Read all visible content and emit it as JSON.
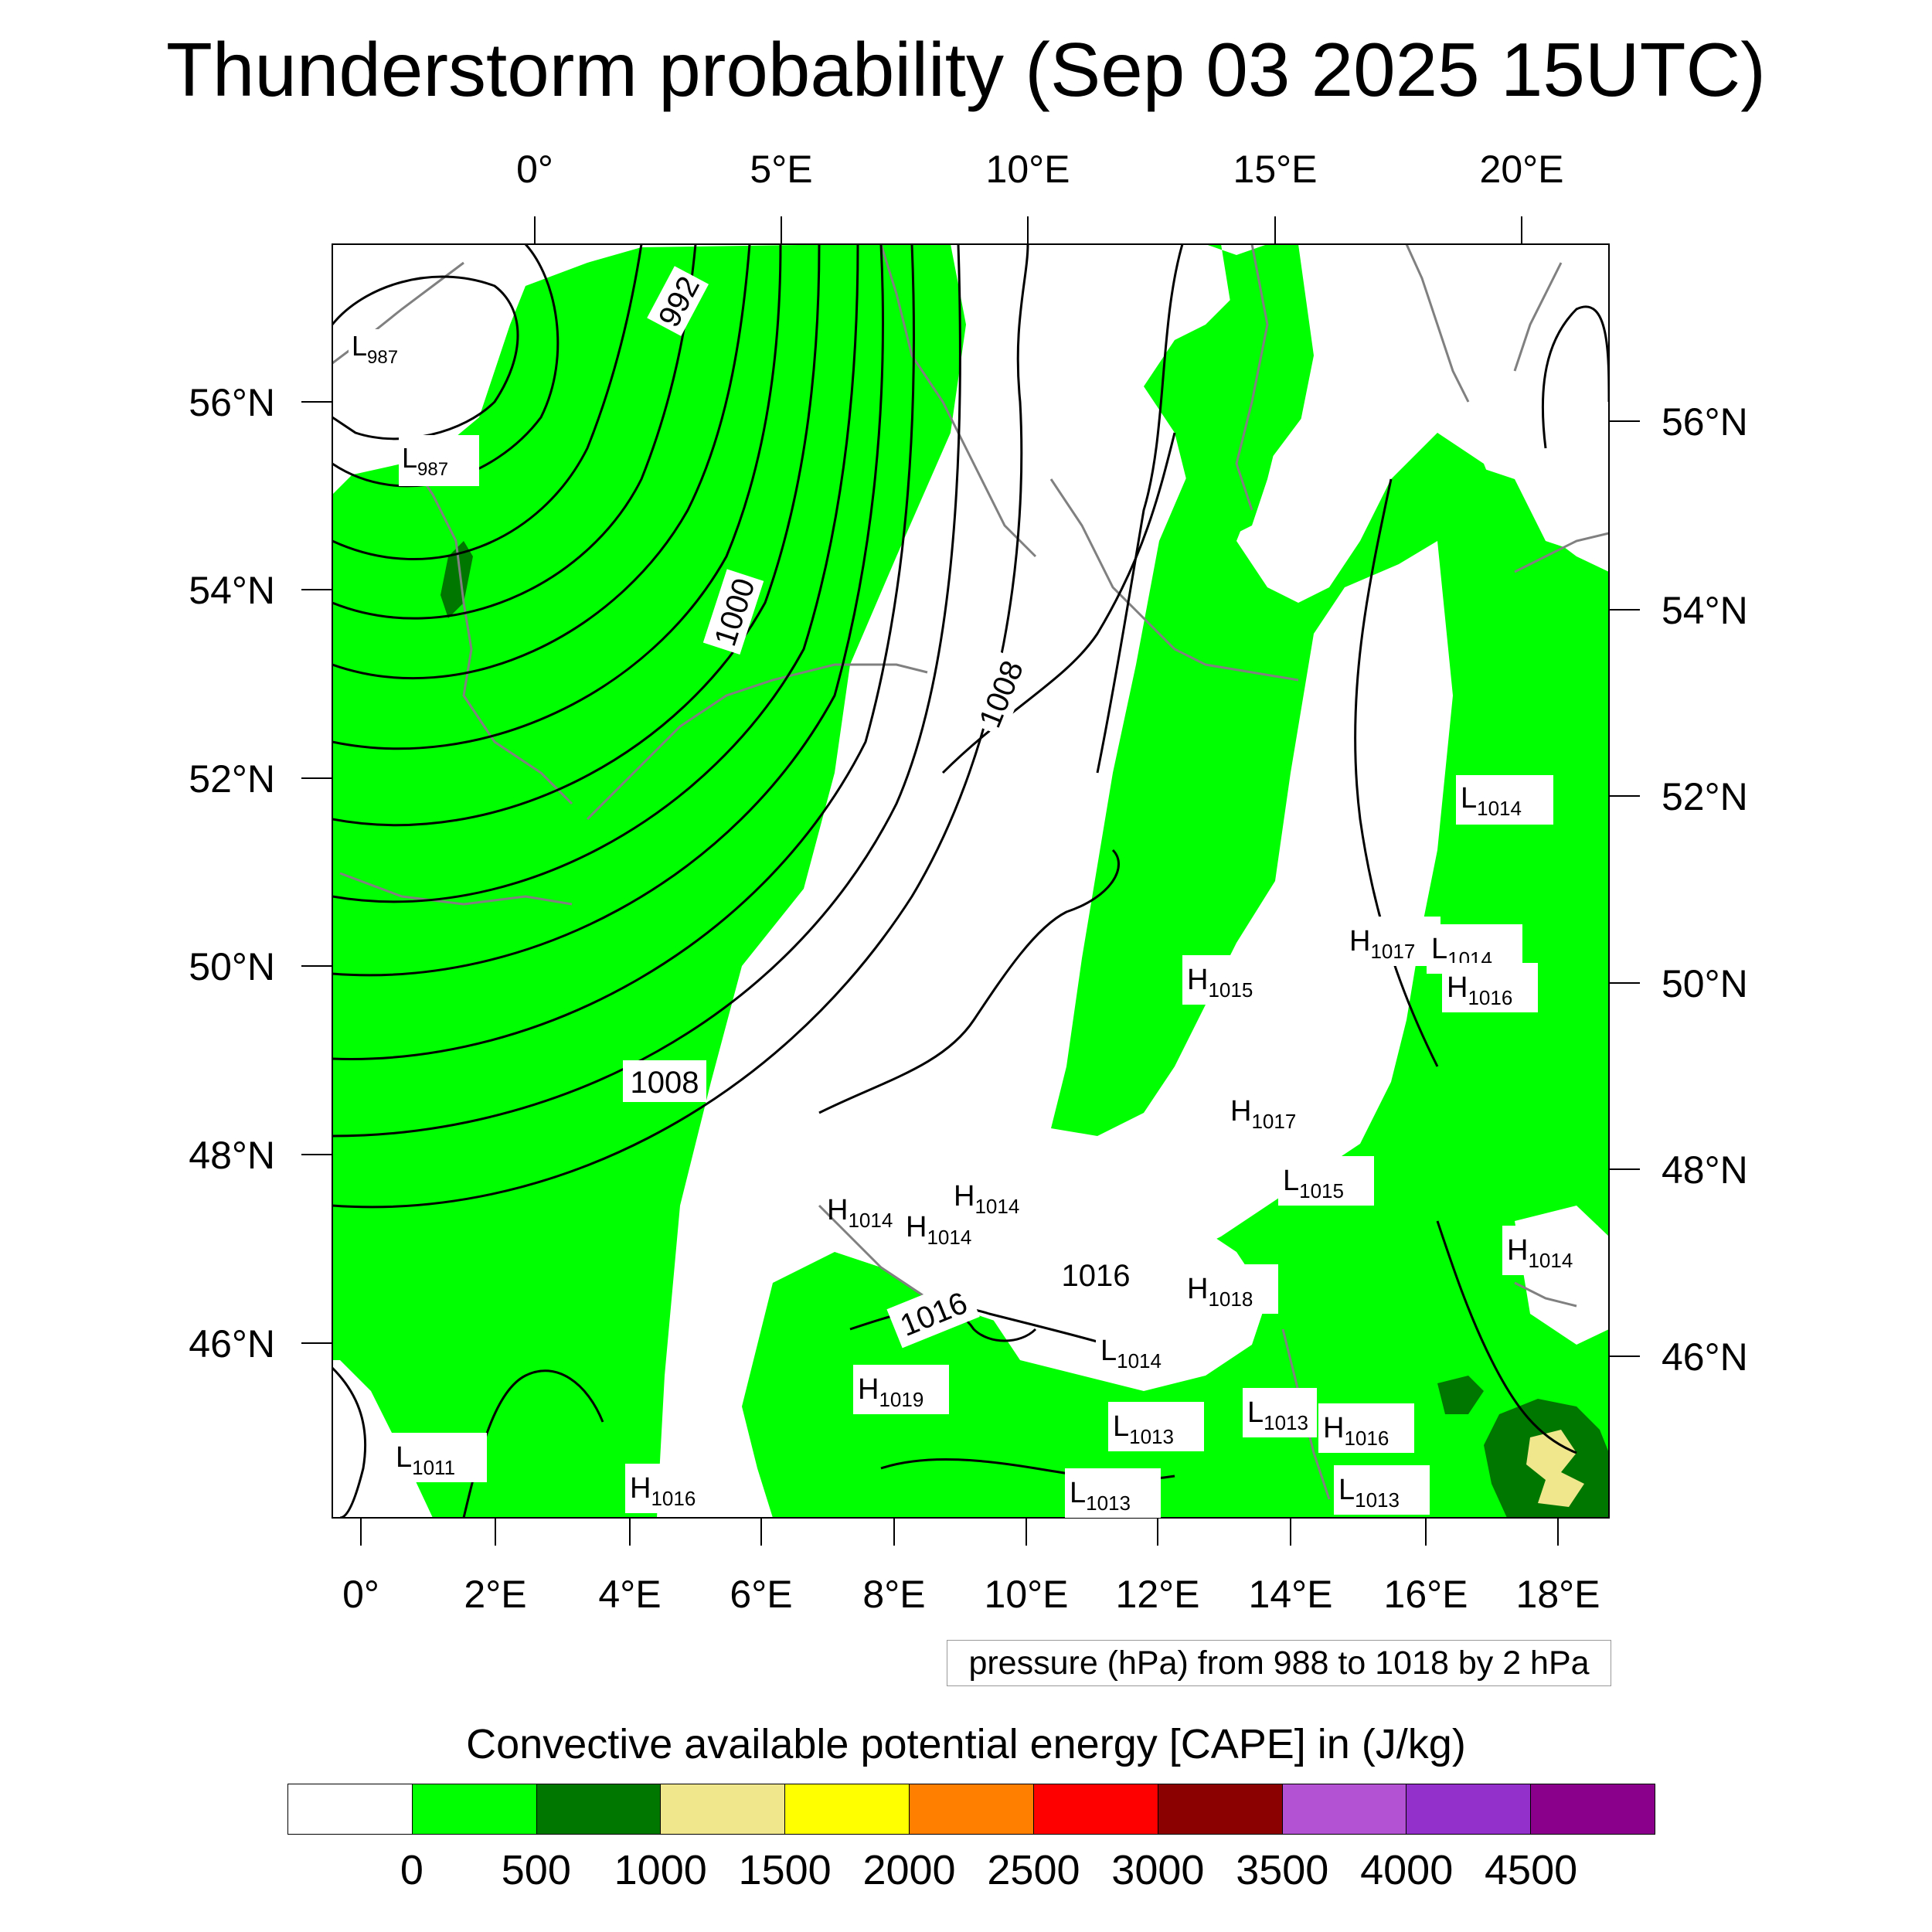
{
  "title": "Thunderstorm probability (Sep 03 2025 15UTC)",
  "top_axis_labels": [
    "0°",
    "5°E",
    "10°E",
    "15°E",
    "20°E"
  ],
  "bottom_axis_labels": [
    "0°",
    "2°E",
    "4°E",
    "6°E",
    "8°E",
    "10°E",
    "12°E",
    "14°E",
    "16°E",
    "18°E"
  ],
  "left_axis_labels": [
    "56°N",
    "54°N",
    "52°N",
    "50°N",
    "48°N",
    "46°N"
  ],
  "right_axis_labels": [
    "56°N",
    "54°N",
    "52°N",
    "50°N",
    "48°N",
    "46°N"
  ],
  "isobar_labels": [
    "992",
    "1000",
    "1008",
    "1008",
    "1016",
    "1016"
  ],
  "pressure_centers": [
    {
      "type": "L",
      "value": "987"
    },
    {
      "type": "L",
      "value": "987"
    },
    {
      "type": "L",
      "value": "1014"
    },
    {
      "type": "H",
      "value": "1017"
    },
    {
      "type": "L",
      "value": "1014"
    },
    {
      "type": "H",
      "value": "1015"
    },
    {
      "type": "H",
      "value": "1016"
    },
    {
      "type": "H",
      "value": "1017"
    },
    {
      "type": "L",
      "value": "1015"
    },
    {
      "type": "H",
      "value": "1014"
    },
    {
      "type": "H",
      "value": "1014"
    },
    {
      "type": "H",
      "value": "1014"
    },
    {
      "type": "H",
      "value": "1014"
    },
    {
      "type": "H",
      "value": "1018"
    },
    {
      "type": "L",
      "value": "1014"
    },
    {
      "type": "H",
      "value": "1019"
    },
    {
      "type": "L",
      "value": "1013"
    },
    {
      "type": "L",
      "value": "1013"
    },
    {
      "type": "H",
      "value": "1016"
    },
    {
      "type": "L",
      "value": "1011"
    },
    {
      "type": "H",
      "value": "1016"
    },
    {
      "type": "L",
      "value": "1013"
    },
    {
      "type": "L",
      "value": "1013"
    }
  ],
  "pressure_note": "pressure (hPa) from 988 to 1018 by 2 hPa",
  "colorbar": {
    "title": "Convective available potential energy [CAPE] in (J/kg)",
    "colors": [
      "#ffffff",
      "#00ff00",
      "#007800",
      "#f0e68c",
      "#ffff00",
      "#ff8000",
      "#ff0000",
      "#8b0000",
      "#b452d4",
      "#9330cb",
      "#8b008b"
    ],
    "tick_labels": [
      "0",
      "500",
      "1000",
      "1500",
      "2000",
      "2500",
      "3000",
      "3500",
      "4000",
      "4500"
    ]
  },
  "colors": {
    "cape_low": "#00ff00",
    "cape_mid": "#007800",
    "cape_high": "#f0e68c",
    "coastline": "#808080",
    "isobar": "#000000"
  }
}
